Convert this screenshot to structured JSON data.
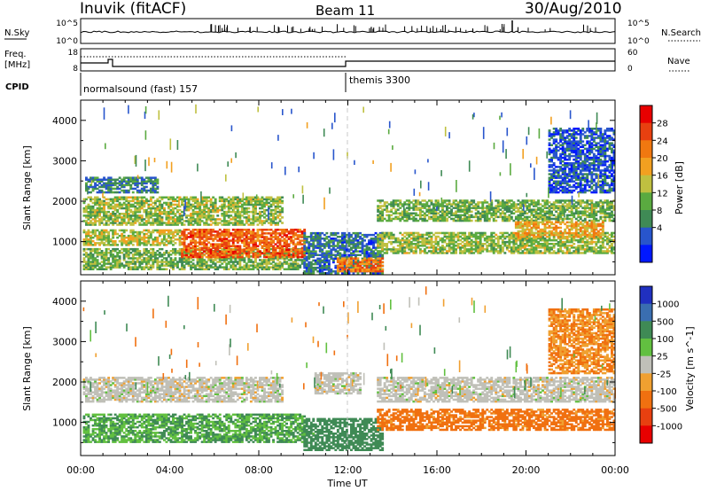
{
  "header": {
    "station": "Inuvik (fitACF)",
    "beam": "Beam 11",
    "date": "30/Aug/2010"
  },
  "panels": {
    "nsky": {
      "label": "N.Sky",
      "tick_top": "10^5",
      "tick_bottom": "10^0",
      "right_label": "N.Search",
      "right_tick_top": "10^5",
      "right_tick_bottom": "10^0"
    },
    "freq": {
      "label_line1": "Freq.",
      "label_line2": "[MHz]",
      "tick_top": "18",
      "tick_bottom": "8",
      "right_label": "Nave",
      "right_tick_top": "60",
      "right_tick_bottom": "0"
    },
    "cpid": {
      "label": "CPID",
      "mode1": "normalsound (fast) 157",
      "mode2": "themis 3300"
    }
  },
  "chart_data": [
    {
      "type": "heatmap",
      "quantity": "Power",
      "ylabel": "Slant Range [km]",
      "xlabel": "Time UT",
      "x_ticks": [
        "00:00",
        "04:00",
        "08:00",
        "12:00",
        "16:00",
        "20:00",
        "00:00"
      ],
      "x_range_hours": [
        0,
        24
      ],
      "y_ticks": [
        1000,
        2000,
        3000,
        4000
      ],
      "ylim": [
        180,
        4500
      ],
      "colorbar": {
        "label": "Power [dB]",
        "ticks": [
          "4",
          "8",
          "12",
          "16",
          "20",
          "24",
          "28"
        ],
        "colors": [
          "#0018ff",
          "#2855cc",
          "#3f8a55",
          "#5aaa40",
          "#bfc040",
          "#f2a020",
          "#f07810",
          "#e84010",
          "#e80000"
        ]
      },
      "regions": [
        {
          "t0": 0.1,
          "t1": 10.0,
          "r0": 300,
          "r1": 800,
          "value": 14
        },
        {
          "t0": 4.5,
          "t1": 10.0,
          "r0": 600,
          "r1": 1300,
          "value": 28
        },
        {
          "t0": 0.1,
          "t1": 4.5,
          "r0": 900,
          "r1": 1300,
          "value": 18
        },
        {
          "t0": 0.1,
          "t1": 9.0,
          "r0": 1400,
          "r1": 2100,
          "value": 16
        },
        {
          "t0": 0.2,
          "t1": 3.5,
          "r0": 2200,
          "r1": 2600,
          "value": 9
        },
        {
          "t0": 10.0,
          "t1": 13.5,
          "r0": 200,
          "r1": 1200,
          "value": 8
        },
        {
          "t0": 11.5,
          "t1": 13.5,
          "r0": 250,
          "r1": 600,
          "value": 26
        },
        {
          "t0": 13.3,
          "t1": 24.0,
          "r0": 700,
          "r1": 1200,
          "value": 16
        },
        {
          "t0": 13.3,
          "t1": 24.0,
          "r0": 1500,
          "r1": 2000,
          "value": 14
        },
        {
          "t0": 19.5,
          "t1": 23.5,
          "r0": 1100,
          "r1": 1500,
          "value": 22
        },
        {
          "t0": 21.0,
          "t1": 24.0,
          "r0": 2200,
          "r1": 3800,
          "value": 6
        }
      ]
    },
    {
      "type": "heatmap",
      "quantity": "Velocity",
      "ylabel": "Slant Range [km]",
      "xlabel": "Time UT",
      "x_ticks": [
        "00:00",
        "04:00",
        "08:00",
        "12:00",
        "16:00",
        "20:00",
        "00:00"
      ],
      "x_range_hours": [
        0,
        24
      ],
      "y_ticks": [
        1000,
        2000,
        3000,
        4000
      ],
      "ylim": [
        180,
        4500
      ],
      "colorbar": {
        "label": "Velocity [m s^-1]",
        "ticks": [
          "1000",
          "500",
          "100",
          "25",
          "-25",
          "-100",
          "-500",
          "-1000"
        ],
        "colors": [
          "#2030c0",
          "#3a6eb0",
          "#3f8a55",
          "#62c040",
          "#c0c0b8",
          "#f0a030",
          "#f07010",
          "#e84010",
          "#e80000"
        ]
      },
      "regions": [
        {
          "t0": 0.1,
          "t1": 10.0,
          "r0": 500,
          "r1": 1200,
          "value": 100
        },
        {
          "t0": 0.1,
          "t1": 9.0,
          "r0": 1500,
          "r1": 2100,
          "value": 0
        },
        {
          "t0": 10.0,
          "t1": 13.5,
          "r0": 300,
          "r1": 1100,
          "value": 200
        },
        {
          "t0": 10.5,
          "t1": 12.5,
          "r0": 1700,
          "r1": 2200,
          "value": 0
        },
        {
          "t0": 13.3,
          "t1": 24.0,
          "r0": 800,
          "r1": 1300,
          "value": -150
        },
        {
          "t0": 13.3,
          "t1": 24.0,
          "r0": 1500,
          "r1": 2100,
          "value": 0
        },
        {
          "t0": 21.0,
          "t1": 24.0,
          "r0": 2200,
          "r1": 3800,
          "value": -100
        }
      ]
    }
  ]
}
